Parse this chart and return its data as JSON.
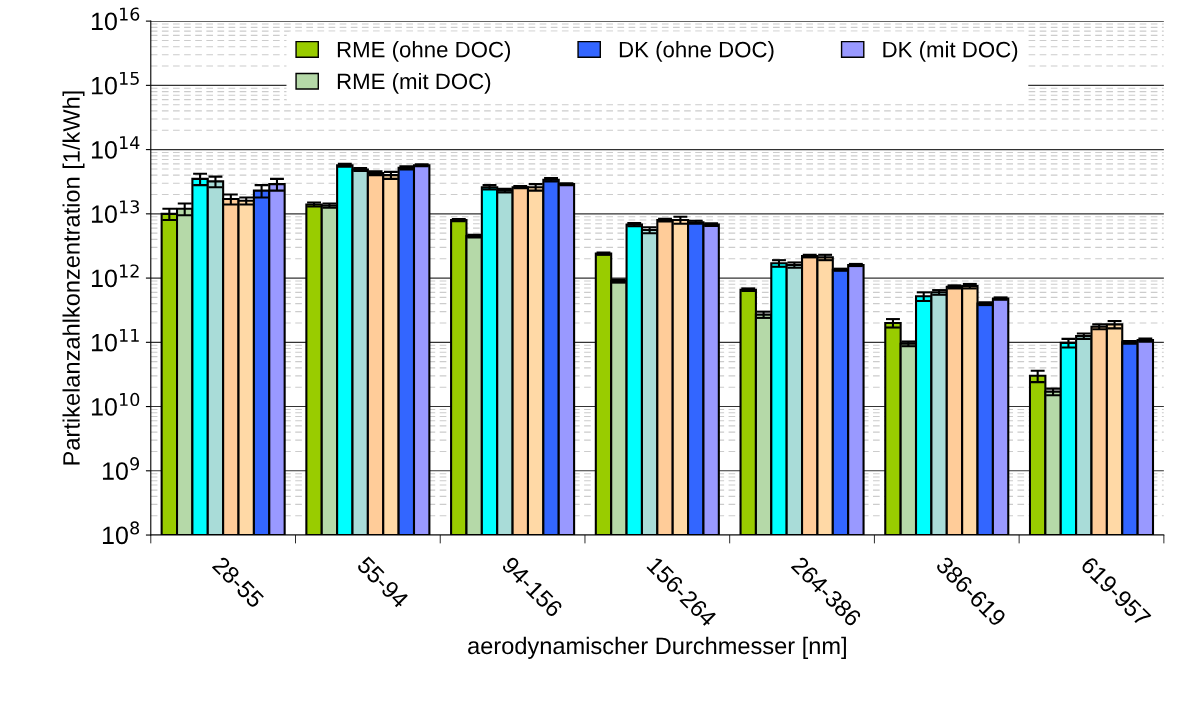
{
  "chart_data": {
    "type": "bar",
    "xlabel": "aerodynamischer Durchmesser [nm]",
    "ylabel": "Partikelanzahlkonzentration [1/kWh]",
    "categories": [
      "28-55",
      "55-94",
      "94-156",
      "156-264",
      "264-386",
      "386-619",
      "619-957"
    ],
    "log": "y",
    "ylim": [
      100000000.0,
      1e+16
    ],
    "yticks": [
      {
        "value": 100000000.0,
        "label": "10$^{8}$"
      },
      {
        "value": 1000000000.0,
        "label": "10$^{9}$"
      },
      {
        "value": 10000000000.0,
        "label": "10$^{10}$"
      },
      {
        "value": 100000000000.0,
        "label": "10$^{11}$"
      },
      {
        "value": 1000000000000.0,
        "label": "10$^{12}$"
      },
      {
        "value": 10000000000000.0,
        "label": "10$^{13}$"
      },
      {
        "value": 100000000000000.0,
        "label": "10$^{14}$"
      },
      {
        "value": 1000000000000000.0,
        "label": "10$^{15}$"
      },
      {
        "value": 1e+16,
        "label": "10$^{16}$"
      }
    ],
    "grid": "y",
    "legend": "top",
    "series": [
      {
        "name": "RME (ohne DOC)",
        "color": "#99cc00",
        "values": [
          10000000000000.0,
          14000000000000.0,
          8000000000000.0,
          2400000000000.0,
          660000000000.0,
          200000000000.0,
          30000000000.0
        ],
        "errors": [
          2000000000000.0,
          1000000000000.0,
          300000000000.0,
          100000000000.0,
          30000000000.0,
          30000000000.0,
          6000000000.0
        ]
      },
      {
        "name": "RME (mit DOC)",
        "color": "#b5d9a8",
        "values": [
          12000000000000.0,
          13500000000000.0,
          4500000000000.0,
          900000000000.0,
          270000000000.0,
          95000000000.0,
          17000000000.0
        ],
        "errors": [
          2500000000000.0,
          1000000000000.0,
          200000000000.0,
          50000000000.0,
          30000000000.0,
          8000000000.0,
          2000000000.0
        ]
      },
      {
        "color": "#00ffff",
        "values": [
          35000000000000.0,
          57000000000000.0,
          26000000000000.0,
          6800000000000.0,
          1700000000000.0,
          520000000000.0,
          98000000000.0
        ],
        "errors": [
          7000000000000.0,
          3000000000000.0,
          2000000000000.0,
          400000000000.0,
          200000000000.0,
          80000000000.0,
          15000000000.0
        ]
      },
      {
        "color": "#a9dcd8",
        "values": [
          32000000000000.0,
          49000000000000.0,
          23000000000000.0,
          5600000000000.0,
          1600000000000.0,
          600000000000.0,
          125000000000.0
        ],
        "errors": [
          6000000000000.0,
          2500000000000.0,
          1500000000000.0,
          600000000000.0,
          150000000000.0,
          50000000000.0,
          12000000000.0
        ]
      },
      {
        "color": "#ffcc99",
        "values": [
          17000000000000.0,
          43000000000000.0,
          26000000000000.0,
          8000000000000.0,
          2200000000000.0,
          730000000000.0,
          175000000000.0
        ],
        "errors": [
          3000000000000.0,
          3000000000000.0,
          1000000000000.0,
          400000000000.0,
          100000000000.0,
          40000000000.0,
          15000000000.0
        ]
      },
      {
        "color": "#ffd9a6",
        "values": [
          16000000000000.0,
          40000000000000.0,
          26000000000000.0,
          8000000000000.0,
          2100000000000.0,
          750000000000.0,
          190000000000.0
        ],
        "errors": [
          2000000000000.0,
          5000000000000.0,
          3000000000000.0,
          1000000000000.0,
          200000000000.0,
          60000000000.0,
          25000000000.0
        ]
      },
      {
        "name": "DK (ohne DOC)",
        "color": "#3366ff",
        "values": [
          23000000000000.0,
          52000000000000.0,
          34000000000000.0,
          7400000000000.0,
          1350000000000.0,
          400000000000.0,
          100000000000.0
        ],
        "errors": [
          5000000000000.0,
          3000000000000.0,
          2000000000000.0,
          400000000000.0,
          50000000000.0,
          20000000000.0,
          5000000000.0
        ]
      },
      {
        "name": "DK (mit DOC)",
        "color": "#9999ff",
        "values": [
          29000000000000.0,
          57000000000000.0,
          29000000000000.0,
          6800000000000.0,
          1600000000000.0,
          480000000000.0,
          108000000000.0
        ],
        "errors": [
          6000000000000.0,
          2000000000000.0,
          1000000000000.0,
          300000000000.0,
          60000000000.0,
          20000000000.0,
          6000000000.0
        ]
      }
    ]
  }
}
